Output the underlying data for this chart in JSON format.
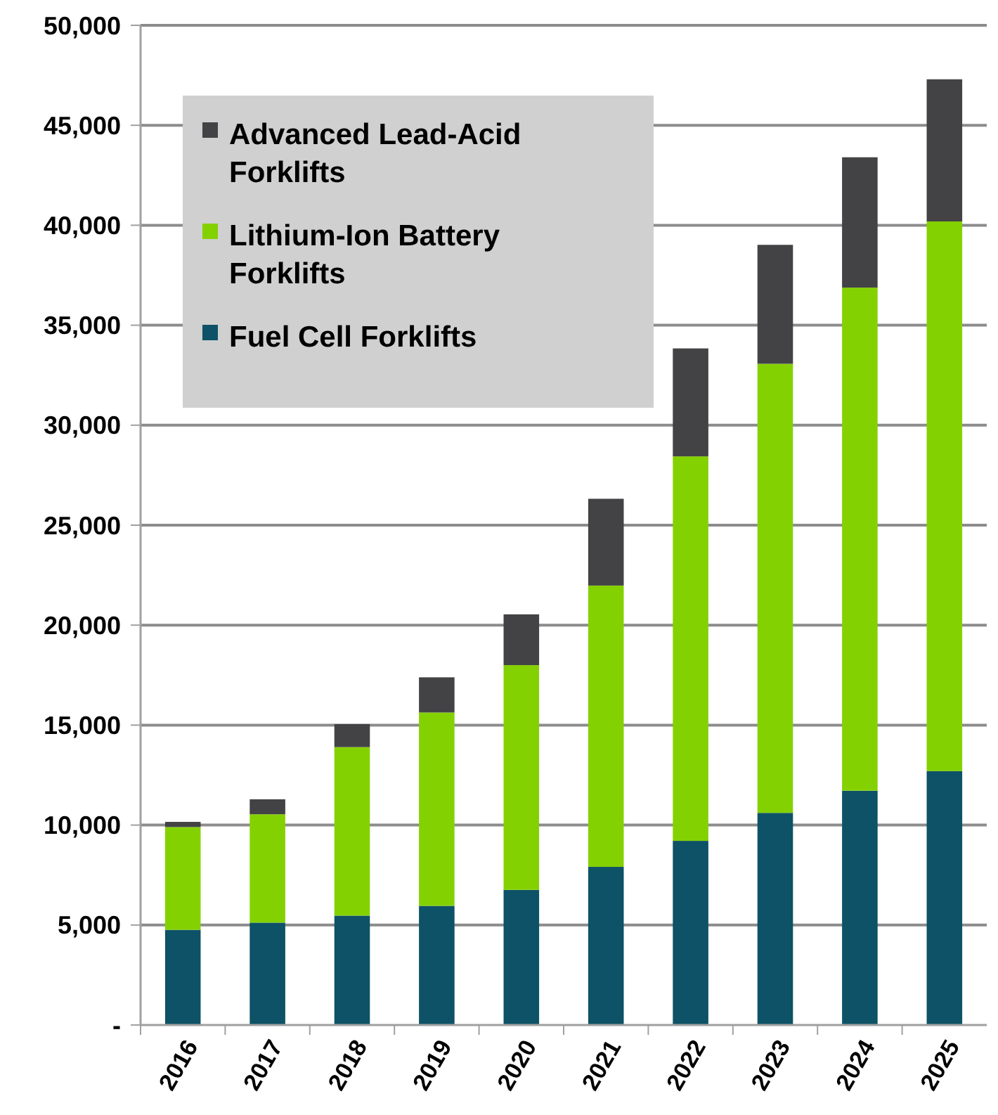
{
  "chart_data": {
    "type": "bar",
    "stacked": true,
    "categories": [
      "2016",
      "2017",
      "2018",
      "2019",
      "2020",
      "2021",
      "2022",
      "2023",
      "2024",
      "2025"
    ],
    "series": [
      {
        "name": "Fuel Cell Forklifts",
        "color": "#0d5266",
        "values": [
          4760,
          5120,
          5470,
          5960,
          6760,
          7910,
          9210,
          10610,
          11720,
          12700
        ]
      },
      {
        "name": "Lithium-Ion Battery Forklifts",
        "color": "#84d102",
        "values": [
          5140,
          5420,
          8430,
          9670,
          11240,
          14070,
          19230,
          22460,
          25160,
          27490
        ]
      },
      {
        "name": "Advanced Lead-Acid Forklifts",
        "color": "#434345",
        "values": [
          260,
          750,
          1150,
          1760,
          2540,
          4340,
          5400,
          5950,
          6520,
          7110
        ]
      }
    ],
    "ylim": [
      0,
      50000
    ],
    "yticks": [
      {
        "value": 0,
        "label": "-"
      },
      {
        "value": 5000,
        "label": "5,000"
      },
      {
        "value": 10000,
        "label": "10,000"
      },
      {
        "value": 15000,
        "label": "15,000"
      },
      {
        "value": 20000,
        "label": "20,000"
      },
      {
        "value": 25000,
        "label": "25,000"
      },
      {
        "value": 30000,
        "label": "30,000"
      },
      {
        "value": 35000,
        "label": "35,000"
      },
      {
        "value": 40000,
        "label": "40,000"
      },
      {
        "value": 45000,
        "label": "45,000"
      },
      {
        "value": 50000,
        "label": "50,000"
      }
    ],
    "grid": "y",
    "legend": "top left"
  }
}
